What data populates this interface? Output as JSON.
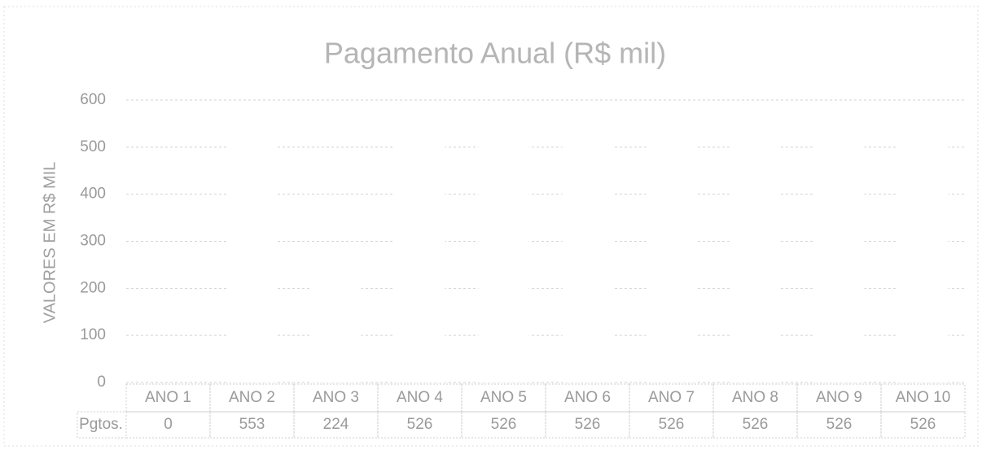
{
  "chart_data": {
    "type": "bar",
    "title": "Pagamento Anual (R$ mil)",
    "y_label": "VALORES EM R$ MIL",
    "categories": [
      "ANO 1",
      "ANO 2",
      "ANO 3",
      "ANO 4",
      "ANO 5",
      "ANO 6",
      "ANO 7",
      "ANO 8",
      "ANO 9",
      "ANO 10"
    ],
    "series": [
      {
        "name": "Pgtos.",
        "color": "#ffffff",
        "values": [
          0,
          553,
          224,
          526,
          526,
          526,
          526,
          526,
          526,
          526
        ]
      }
    ],
    "ylim": [
      0,
      600
    ],
    "yticks": [
      0,
      100,
      200,
      300,
      400,
      500,
      600
    ],
    "grid": true
  }
}
